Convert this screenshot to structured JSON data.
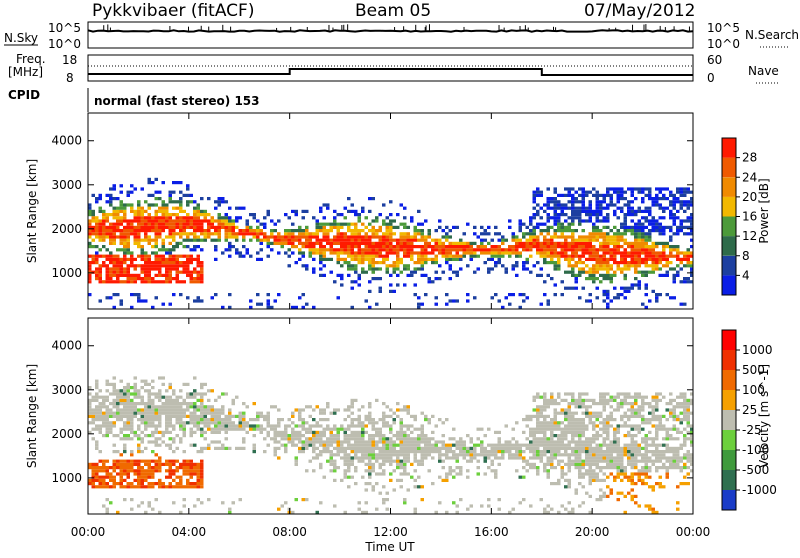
{
  "header": {
    "station": "Pykkvibaer (fitACF)",
    "beam": "Beam 05",
    "date": "07/May/2012"
  },
  "top_panels": {
    "nsky": {
      "label": "N.Sky",
      "ticks": [
        "10^5",
        "10^0"
      ],
      "right_label": "N.Search",
      "right_ticks": [
        "10^5",
        "10^0"
      ]
    },
    "freq": {
      "label_top": "Freq.",
      "label_bottom": "[MHz]",
      "ticks": [
        "18",
        "8"
      ],
      "right_label": "Nave",
      "right_ticks": [
        "60",
        "0"
      ]
    },
    "cpid": {
      "label": "CPID",
      "text": "normal (fast stereo) 153"
    }
  },
  "chart_data": [
    {
      "type": "heatmap",
      "title": "",
      "ylabel": "Slant Range [km]",
      "xlabel": "Time UT",
      "x_ticks": [
        "00:00",
        "04:00",
        "08:00",
        "12:00",
        "16:00",
        "20:00",
        "00:00"
      ],
      "xlim_hours": [
        0,
        24
      ],
      "y_ticks": [
        1000,
        2000,
        3000,
        4000
      ],
      "ylim": [
        180,
        4630
      ],
      "colorbar": {
        "label": "Power [dB]",
        "ticks": [
          "4",
          "8",
          "12",
          "16",
          "20",
          "24",
          "28"
        ],
        "colors": [
          "#0a1ee6",
          "#1c3fa0",
          "#2e6b4a",
          "#4c9a3a",
          "#f2b800",
          "#f08a00",
          "#f05a00",
          "#ff1a00"
        ]
      },
      "band_center_km": [
        [
          0,
          1950
        ],
        [
          2,
          2000
        ],
        [
          4,
          2100
        ],
        [
          6,
          1900
        ],
        [
          8,
          1700
        ],
        [
          10,
          1650
        ],
        [
          12,
          1550
        ],
        [
          14,
          1500
        ],
        [
          16,
          1500
        ],
        [
          18,
          1600
        ],
        [
          20,
          1400
        ],
        [
          22,
          1350
        ],
        [
          24,
          1300
        ]
      ]
    },
    {
      "type": "heatmap",
      "title": "",
      "ylabel": "Slant Range [km]",
      "xlabel": "Time UT",
      "x_ticks": [
        "00:00",
        "04:00",
        "08:00",
        "12:00",
        "16:00",
        "20:00",
        "00:00"
      ],
      "xlim_hours": [
        0,
        24
      ],
      "y_ticks": [
        1000,
        2000,
        3000,
        4000
      ],
      "ylim": [
        180,
        4630
      ],
      "colorbar": {
        "label": "Velocity [m s^-1]",
        "ticks": [
          "1000",
          "500",
          "100",
          "25",
          "-25",
          "-100",
          "-500",
          "-1000"
        ],
        "colors": [
          "#1a3cc8",
          "#2f6f50",
          "#3f9a3c",
          "#6ccf3c",
          "#bdbdb0",
          "#f5a000",
          "#f06a00",
          "#f03000",
          "#ff0000"
        ]
      },
      "band_center_km": [
        [
          0,
          2400
        ],
        [
          2,
          2500
        ],
        [
          4,
          2400
        ],
        [
          6,
          2200
        ],
        [
          8,
          1900
        ],
        [
          10,
          1750
        ],
        [
          12,
          1650
        ],
        [
          14,
          1600
        ],
        [
          16,
          1550
        ],
        [
          18,
          1700
        ],
        [
          20,
          1550
        ],
        [
          22,
          1450
        ],
        [
          24,
          1400
        ]
      ]
    }
  ],
  "xaxis": {
    "label": "Time UT"
  }
}
